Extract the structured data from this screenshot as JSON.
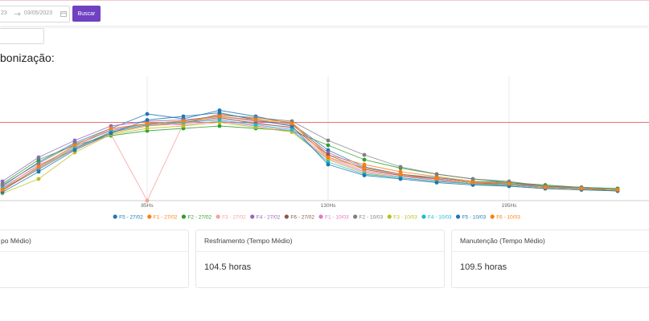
{
  "toolbar": {
    "date_start": "23",
    "date_end": "03/05/2023",
    "button": "Buscar"
  },
  "section_title": "bonização:",
  "chart_data": {
    "type": "line",
    "categories": [
      null,
      null,
      null,
      null,
      "85Hs",
      null,
      null,
      null,
      null,
      "130Hs",
      null,
      null,
      null,
      null,
      "195Hs",
      null,
      null,
      null
    ],
    "ylim": [
      0,
      100
    ],
    "reference_line": 65,
    "reference_color": "#e57373",
    "grid": true,
    "series": [
      {
        "name": "F5 - 27/02",
        "color": "#1f77b4",
        "values": [
          12,
          32,
          48,
          60,
          72,
          68,
          75,
          70,
          64,
          42,
          28,
          22,
          19,
          16,
          15,
          12,
          11,
          10
        ]
      },
      {
        "name": "F1 - 27/02",
        "color": "#ff7f0e",
        "values": [
          8,
          28,
          44,
          56,
          62,
          64,
          72,
          68,
          65,
          38,
          30,
          24,
          20,
          16,
          14,
          12,
          10,
          9
        ]
      },
      {
        "name": "F2 - 27/02",
        "color": "#2ca02c",
        "values": [
          14,
          34,
          46,
          54,
          58,
          60,
          62,
          60,
          58,
          46,
          34,
          27,
          22,
          18,
          15,
          13,
          11,
          10
        ]
      },
      {
        "name": "F3 - 27/02",
        "color": "#f4a29c",
        "values": [
          10,
          30,
          42,
          55,
          0,
          64,
          68,
          65,
          60,
          36,
          25,
          21,
          17,
          14,
          13,
          11,
          10,
          9
        ]
      },
      {
        "name": "F4 - 27/02",
        "color": "#9467bd",
        "values": [
          16,
          36,
          50,
          62,
          66,
          67,
          70,
          66,
          63,
          40,
          27,
          22,
          18,
          15,
          14,
          12,
          10,
          9
        ]
      },
      {
        "name": "F6 - 27/02",
        "color": "#8c564b",
        "values": [
          9,
          26,
          43,
          57,
          63,
          65,
          69,
          64,
          61,
          38,
          26,
          21,
          18,
          15,
          13,
          11,
          10,
          8
        ]
      },
      {
        "name": "F1 - 10/03",
        "color": "#e377c2",
        "values": [
          11,
          29,
          45,
          59,
          64,
          63,
          66,
          62,
          58,
          35,
          24,
          20,
          17,
          14,
          13,
          11,
          10,
          9
        ]
      },
      {
        "name": "F2 - 10/03",
        "color": "#7f7f7f",
        "values": [
          13,
          31,
          47,
          58,
          64,
          66,
          71,
          69,
          66,
          50,
          38,
          28,
          22,
          18,
          16,
          12,
          11,
          9
        ]
      },
      {
        "name": "F3 - 10/03",
        "color": "#bcbd22",
        "values": [
          6,
          18,
          40,
          55,
          60,
          62,
          65,
          61,
          57,
          34,
          23,
          19,
          16,
          14,
          12,
          10,
          9,
          8
        ]
      },
      {
        "name": "F4 - 10/03",
        "color": "#17becf",
        "values": [
          10,
          27,
          44,
          57,
          63,
          65,
          67,
          63,
          59,
          32,
          22,
          19,
          16,
          14,
          13,
          11,
          10,
          9
        ]
      },
      {
        "name": "F5 - 10/03",
        "color": "#1f77b4",
        "values": [
          7,
          24,
          42,
          56,
          67,
          70,
          73,
          67,
          62,
          30,
          21,
          18,
          15,
          13,
          12,
          10,
          9,
          8
        ]
      },
      {
        "name": "F6 - 10/03",
        "color": "#ff7f0e",
        "values": [
          9,
          28,
          46,
          60,
          64,
          66,
          70,
          67,
          64,
          36,
          27,
          22,
          18,
          15,
          14,
          11,
          10,
          9
        ]
      }
    ]
  },
  "cards": [
    {
      "title": "po Médio)"
    },
    {
      "title": "Resfriamento (Tempo Médio)",
      "value": "104.5 horas"
    },
    {
      "title": "Manutenção (Tempo Médio)",
      "value": "109.5 horas"
    }
  ]
}
